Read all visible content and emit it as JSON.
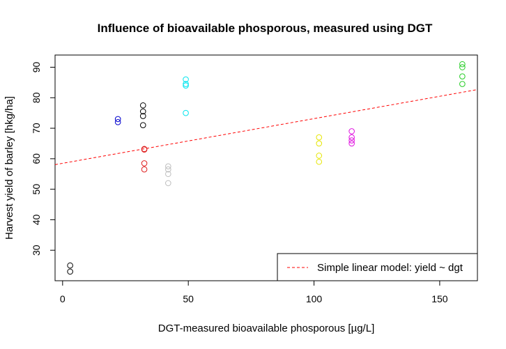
{
  "chart_data": {
    "type": "scatter",
    "title": "Influence of bioavailable phosporous, measured using DGT",
    "xlabel": "DGT-measured bioavailable phosporous [µg/L]",
    "ylabel": "Harvest yield of barley [hkg/ha]",
    "xlim": [
      -3,
      165
    ],
    "ylim": [
      20,
      94
    ],
    "x_ticks": [
      0,
      50,
      100,
      150
    ],
    "y_ticks": [
      30,
      40,
      50,
      60,
      70,
      80,
      90
    ],
    "grid": false,
    "legend_position": "bottom-right",
    "series": [
      {
        "color": "#000000",
        "points": [
          [
            3,
            25
          ],
          [
            3,
            23
          ]
        ]
      },
      {
        "color": "#0000CD",
        "points": [
          [
            22,
            73
          ],
          [
            22,
            72
          ]
        ]
      },
      {
        "color": "#000000",
        "points": [
          [
            32,
            77.5
          ],
          [
            32,
            75.5
          ],
          [
            32,
            74
          ],
          [
            32,
            71
          ]
        ]
      },
      {
        "color": "#DF2020",
        "points": [
          [
            32.5,
            63
          ],
          [
            32.5,
            63.2
          ],
          [
            32.5,
            58.5
          ],
          [
            32.5,
            56.5
          ]
        ]
      },
      {
        "color": "#BEBEBE",
        "points": [
          [
            42,
            57.5
          ],
          [
            42,
            56.5
          ],
          [
            42,
            55
          ],
          [
            42,
            52
          ]
        ]
      },
      {
        "color": "#00E5EE",
        "points": [
          [
            49,
            86
          ],
          [
            49,
            84.5
          ],
          [
            49,
            84
          ],
          [
            49,
            75
          ]
        ]
      },
      {
        "color": "#E6E600",
        "points": [
          [
            102,
            67
          ],
          [
            102,
            65
          ],
          [
            102,
            61
          ],
          [
            102,
            59
          ]
        ]
      },
      {
        "color": "#E010E0",
        "points": [
          [
            115,
            69
          ],
          [
            115,
            67
          ],
          [
            115,
            66
          ],
          [
            115,
            65
          ]
        ]
      },
      {
        "color": "#22CC22",
        "points": [
          [
            159,
            91
          ],
          [
            159,
            90
          ],
          [
            159,
            87
          ],
          [
            159,
            84.5
          ]
        ]
      }
    ],
    "lines": [
      {
        "name": "Simple linear model: yield ~ dgt",
        "color": "#FF0000",
        "style": "dashed",
        "intercept": 58.5,
        "slope": 0.1465
      }
    ],
    "legend": [
      {
        "label": "Simple linear model: yield ~ dgt",
        "color": "#FF0000",
        "style": "dashed"
      }
    ]
  }
}
